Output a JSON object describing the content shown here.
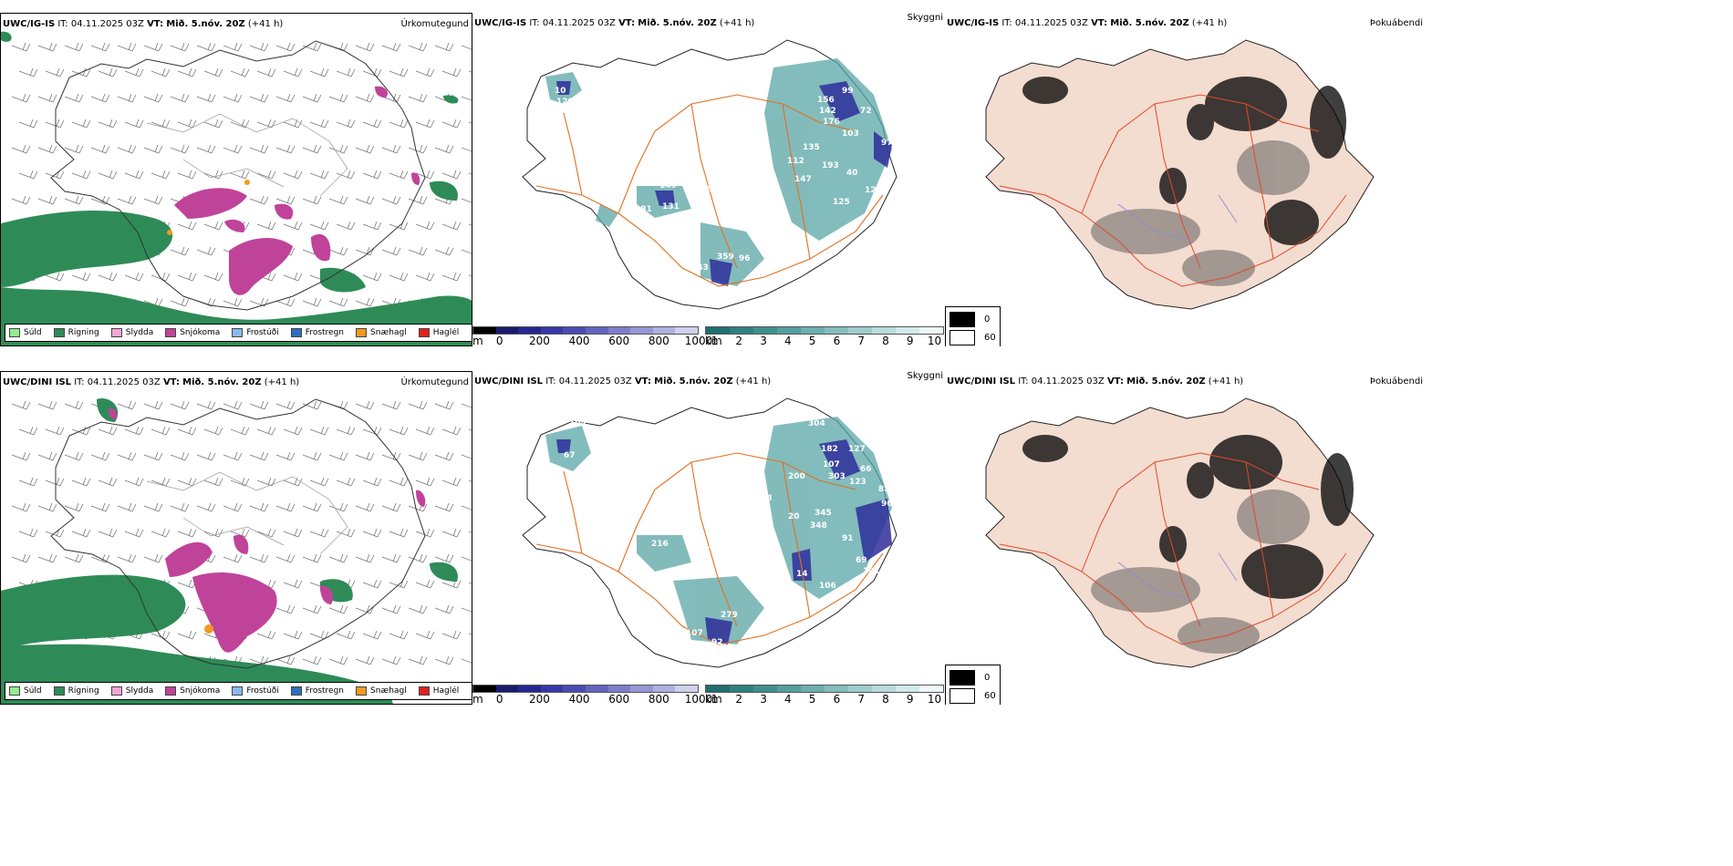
{
  "rows": [
    {
      "model": "UWC/IG-IS",
      "it_label": "IT:",
      "it_value": "04.11.2025 03Z",
      "vt_label": "VT:",
      "vt_value": "Mið. 5.nóv. 20Z",
      "lead": "(+41 h)",
      "panels": {
        "precip": "Úrkomutegund",
        "visibility": "Skyggni",
        "fog": "Þokuábendi"
      },
      "vis_labels": [
        {
          "t": "465"
        },
        {
          "t": "99"
        },
        {
          "t": "156"
        },
        {
          "t": "142"
        },
        {
          "t": "176"
        },
        {
          "t": "72"
        },
        {
          "t": "103"
        },
        {
          "t": "97"
        },
        {
          "t": "120"
        },
        {
          "t": "10"
        },
        {
          "t": "135"
        },
        {
          "t": "112"
        },
        {
          "t": "193"
        },
        {
          "t": "40"
        },
        {
          "t": "147"
        },
        {
          "t": "128"
        },
        {
          "t": "149"
        },
        {
          "t": "168"
        },
        {
          "t": "181"
        },
        {
          "t": "131"
        },
        {
          "t": "497"
        },
        {
          "t": "125"
        },
        {
          "t": "272"
        },
        {
          "t": "203"
        },
        {
          "t": "359"
        },
        {
          "t": "96"
        },
        {
          "t": "143"
        },
        {
          "t": "284"
        }
      ]
    },
    {
      "model": "UWC/DINI ISL",
      "it_label": "IT:",
      "it_value": "04.11.2025 03Z",
      "vt_label": "VT:",
      "vt_value": "Mið. 5.nóv. 20Z",
      "lead": "(+41 h)",
      "panels": {
        "precip": "Úrkomutegund",
        "visibility": "Skyggni",
        "fog": "Þokuábendi"
      },
      "vis_labels": [
        {
          "t": "304"
        },
        {
          "t": "182"
        },
        {
          "t": "127"
        },
        {
          "t": "107"
        },
        {
          "t": "66"
        },
        {
          "t": "109"
        },
        {
          "t": "104"
        },
        {
          "t": "108"
        },
        {
          "t": "67"
        },
        {
          "t": "303"
        },
        {
          "t": "123"
        },
        {
          "t": "82"
        },
        {
          "t": "96"
        },
        {
          "t": "200"
        },
        {
          "t": "28"
        },
        {
          "t": "20"
        },
        {
          "t": "345"
        },
        {
          "t": "348"
        },
        {
          "t": "91"
        },
        {
          "t": "216"
        },
        {
          "t": "157"
        },
        {
          "t": "69"
        },
        {
          "t": "101"
        },
        {
          "t": "99"
        },
        {
          "t": "14"
        },
        {
          "t": "95"
        },
        {
          "t": "106"
        },
        {
          "t": "279"
        },
        {
          "t": "107"
        },
        {
          "t": "92"
        }
      ]
    }
  ],
  "precip_legend": [
    {
      "label": "Súld",
      "color": "#90ee90"
    },
    {
      "label": "Rigning",
      "color": "#2e8b57"
    },
    {
      "label": "Slydda",
      "color": "#f4a6d7"
    },
    {
      "label": "Snjókoma",
      "color": "#c0439a"
    },
    {
      "label": "Frostúði",
      "color": "#8ab8ee"
    },
    {
      "label": "Frostregn",
      "color": "#2f6fc0"
    },
    {
      "label": "Snæhagl",
      "color": "#f29a1f"
    },
    {
      "label": "Haglél",
      "color": "#e02020"
    }
  ],
  "cloudbase_bar": {
    "unit": "m",
    "ticks": [
      "0",
      "200",
      "400",
      "600",
      "800",
      "1000"
    ],
    "colors": [
      "#000000",
      "#1a1a6e",
      "#26268f",
      "#3737a8",
      "#4b4bb4",
      "#6464c0",
      "#7d7dcb",
      "#9696d6",
      "#b0b0e0",
      "#d0d0ee"
    ]
  },
  "visibility_bar": {
    "unit": "km",
    "ticks": [
      "1",
      "2",
      "3",
      "4",
      "5",
      "6",
      "7",
      "8",
      "9",
      "10"
    ],
    "colors": [
      "#1f6f6f",
      "#2f8080",
      "#3f8f8f",
      "#559e9e",
      "#6daeae",
      "#86bdbd",
      "#9fcccc",
      "#b8dbdb",
      "#d1e9e9",
      "#eef8f8"
    ]
  },
  "fog_key": [
    {
      "label": "0",
      "color": "#000000"
    },
    {
      "label": "60",
      "color": "#ffffff"
    }
  ],
  "colors": {
    "rain": "#2e8b57",
    "snow": "#c0439a",
    "road": "#e07020",
    "land_fog": "#f3dcd0",
    "vis_fill": "#5aa5a5",
    "cloud_fill": "#2e2e9a"
  }
}
